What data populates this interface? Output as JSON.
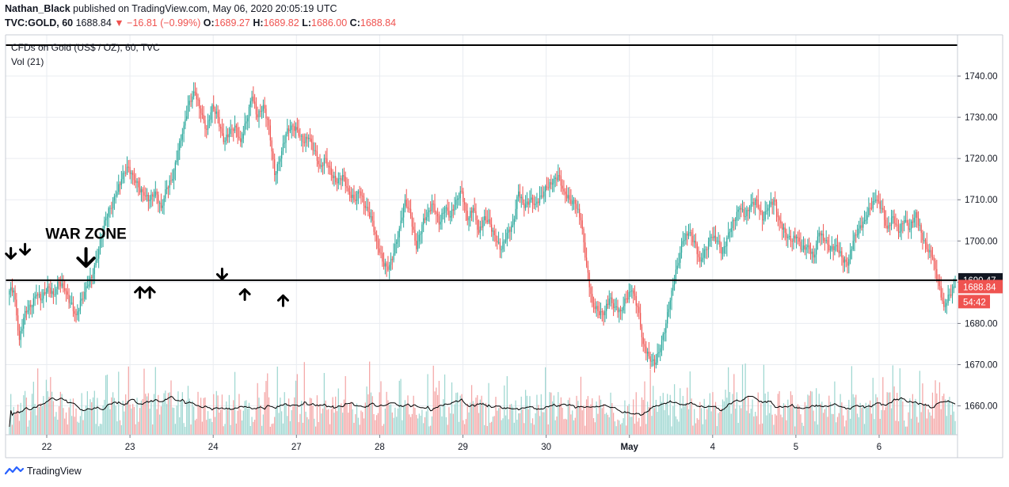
{
  "header": {
    "author": "Nathan_Black",
    "published": "published on TradingView.com, May 06, 2020 20:05:19 UTC",
    "symbol": "TVC:GOLD, 60",
    "last": "1688.84",
    "change_arrow": "▼",
    "change": "−16.81 (−0.99%)",
    "o_label": "O:",
    "o": "1689.27",
    "h_label": "H:",
    "h": "1689.82",
    "l_label": "L:",
    "l": "1686.00",
    "c_label": "C:",
    "c": "1688.84"
  },
  "footer": {
    "brand": "TradingView",
    "logo_icon": "tradingview-logo-icon"
  },
  "colors": {
    "up": "#26a69a",
    "down": "#ef5350",
    "up_vol": "#9fd7d1",
    "down_vol": "#f4a6a6",
    "grid": "#e9ecf1",
    "line": "#000000"
  },
  "chart_data": {
    "type": "candlestick",
    "title": "CFDs on Gold (US$ / OZ), 60, TVC",
    "volume_label": "Vol (21)",
    "y_ticks": [
      1660,
      1670,
      1680,
      1690,
      1700,
      1710,
      1720,
      1730,
      1740
    ],
    "y_tick_labels": [
      "1660.00",
      "1670.00",
      "1680.00",
      "1690.00",
      "1700.00",
      "1710.00",
      "1720.00",
      "1730.00",
      "1740.00"
    ],
    "ylim": [
      1653,
      1750
    ],
    "x_tick_labels": [
      "22",
      "23",
      "24",
      "27",
      "28",
      "29",
      "30",
      "May",
      "4",
      "5",
      "6"
    ],
    "horizontal_lines": [
      {
        "price": 1747.5,
        "label": ""
      },
      {
        "price": 1690.47,
        "label": "1690.47"
      }
    ],
    "price_badges": [
      {
        "price": 1688.84,
        "label": "1688.84"
      },
      {
        "price": 1685.2,
        "label": "54:42"
      }
    ],
    "annotations": [
      {
        "text": "WAR ZONE",
        "x_index": 54,
        "price": 1700.5
      },
      {
        "type": "down-arrow",
        "x_index": 54,
        "price": 1696
      },
      {
        "type": "down-arrow",
        "x_index": 1,
        "price": 1697
      },
      {
        "type": "down-arrow",
        "x_index": 11,
        "price": 1698
      },
      {
        "type": "up-arrow",
        "x_index": 92,
        "price": 1687.5
      },
      {
        "type": "up-arrow",
        "x_index": 99,
        "price": 1687.5
      },
      {
        "type": "down-arrow",
        "x_index": 150,
        "price": 1692
      },
      {
        "type": "up-arrow",
        "x_index": 166,
        "price": 1687
      },
      {
        "type": "up-arrow",
        "x_index": 193,
        "price": 1685.5
      }
    ],
    "segments": [
      [
        1688,
        1676,
        1683,
        1684,
        1687,
        1686,
        1689,
        1687
      ],
      [
        1690,
        1688,
        1685,
        1682,
        1686,
        1689,
        1692
      ],
      [
        1698,
        1705,
        1708,
        1711,
        1715,
        1718,
        1716,
        1713,
        1711,
        1710,
        1712,
        1708,
        1713,
        1715
      ],
      [
        1722,
        1728,
        1734,
        1736,
        1731,
        1727,
        1733,
        1730,
        1724
      ],
      [
        1726,
        1728,
        1724,
        1729,
        1735,
        1730,
        1733,
        1728,
        1716,
        1720,
        1726,
        1728,
        1727,
        1724,
        1725,
        1722,
        1718,
        1720,
        1716,
        1714,
        1716,
        1712,
        1710,
        1712,
        1708,
        1706,
        1700,
        1695,
        1693,
        1697
      ],
      [
        1703,
        1710,
        1706,
        1698,
        1704,
        1707,
        1709,
        1704,
        1708,
        1706,
        1710,
        1712,
        1705,
        1708,
        1702,
        1706,
        1704,
        1700,
        1698,
        1702,
        1704
      ],
      [
        1712,
        1708,
        1710,
        1709,
        1711,
        1713,
        1714,
        1716,
        1712,
        1710,
        1709
      ],
      [
        1705,
        1694,
        1685,
        1683,
        1682,
        1686,
        1684,
        1683,
        1686,
        1688,
        1684,
        1675,
        1672,
        1670,
        1674,
        1680
      ],
      [
        1688,
        1694,
        1700,
        1702,
        1700,
        1695,
        1698,
        1701,
        1700,
        1697,
        1702,
        1705,
        1708,
        1706,
        1709,
        1710,
        1705,
        1708,
        1710,
        1705,
        1702,
        1700
      ],
      [
        1701,
        1698,
        1699,
        1696,
        1702,
        1700,
        1698,
        1699,
        1696,
        1694,
        1700,
        1703,
        1705,
        1708,
        1710,
        1708,
        1703,
        1706,
        1702,
        1705,
        1703,
        1707,
        1702,
        1698,
        1696,
        1690,
        1684,
        1687,
        1689
      ]
    ]
  }
}
